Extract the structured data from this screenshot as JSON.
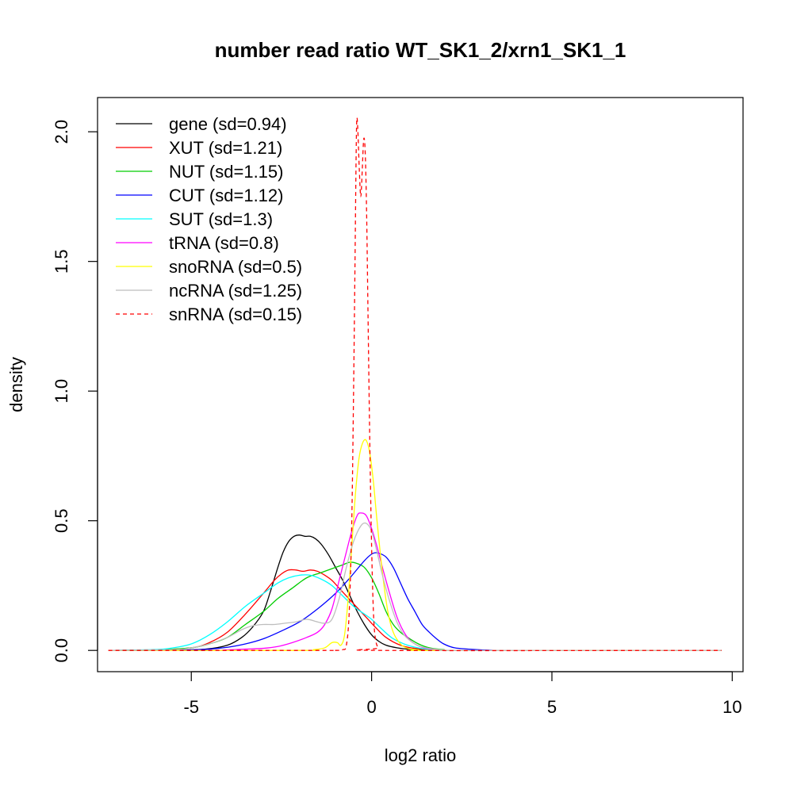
{
  "chart_data": {
    "type": "line",
    "title": "number read ratio WT_SK1_2/xrn1_SK1_1",
    "xlabel": "log2 ratio",
    "ylabel": "density",
    "xlim": [
      -7.6,
      10.3
    ],
    "ylim": [
      -0.082,
      2.132
    ],
    "xticks": [
      -5,
      0,
      5,
      10
    ],
    "xtick_labels": [
      "-5",
      "0",
      "5",
      "10"
    ],
    "yticks": [
      0.0,
      0.5,
      1.0,
      1.5,
      2.0
    ],
    "ytick_labels": [
      "0.0",
      "0.5",
      "1.0",
      "1.5",
      "2.0"
    ],
    "legend_position": "top-left",
    "grid": false,
    "series": [
      {
        "name": "gene (sd=0.94)",
        "color": "#000000",
        "dashed": false,
        "points": [
          [
            -7.3,
            0
          ],
          [
            -5.5,
            0.001
          ],
          [
            -4.6,
            0.005
          ],
          [
            -4.0,
            0.02
          ],
          [
            -3.6,
            0.05
          ],
          [
            -3.3,
            0.09
          ],
          [
            -3.0,
            0.15
          ],
          [
            -2.8,
            0.23
          ],
          [
            -2.6,
            0.32
          ],
          [
            -2.45,
            0.38
          ],
          [
            -2.3,
            0.42
          ],
          [
            -2.15,
            0.44
          ],
          [
            -2.0,
            0.445
          ],
          [
            -1.85,
            0.44
          ],
          [
            -1.7,
            0.44
          ],
          [
            -1.55,
            0.43
          ],
          [
            -1.4,
            0.41
          ],
          [
            -1.2,
            0.37
          ],
          [
            -1.0,
            0.32
          ],
          [
            -0.8,
            0.27
          ],
          [
            -0.6,
            0.21
          ],
          [
            -0.4,
            0.15
          ],
          [
            -0.2,
            0.1
          ],
          [
            0,
            0.06
          ],
          [
            0.2,
            0.035
          ],
          [
            0.4,
            0.02
          ],
          [
            0.7,
            0.01
          ],
          [
            1.0,
            0.005
          ],
          [
            1.5,
            0.002
          ],
          [
            2.5,
            0
          ],
          [
            9.7,
            0
          ]
        ]
      },
      {
        "name": "XUT (sd=1.21)",
        "color": "#ff0000",
        "dashed": false,
        "points": [
          [
            -7.3,
            0
          ],
          [
            -6.0,
            0.002
          ],
          [
            -5.0,
            0.01
          ],
          [
            -4.5,
            0.03
          ],
          [
            -4.0,
            0.07
          ],
          [
            -3.5,
            0.14
          ],
          [
            -3.0,
            0.22
          ],
          [
            -2.7,
            0.27
          ],
          [
            -2.5,
            0.295
          ],
          [
            -2.3,
            0.31
          ],
          [
            -2.1,
            0.31
          ],
          [
            -1.9,
            0.305
          ],
          [
            -1.7,
            0.31
          ],
          [
            -1.5,
            0.305
          ],
          [
            -1.3,
            0.29
          ],
          [
            -1.1,
            0.27
          ],
          [
            -0.9,
            0.24
          ],
          [
            -0.7,
            0.21
          ],
          [
            -0.5,
            0.18
          ],
          [
            -0.3,
            0.15
          ],
          [
            -0.1,
            0.12
          ],
          [
            0.1,
            0.09
          ],
          [
            0.4,
            0.05
          ],
          [
            0.8,
            0.02
          ],
          [
            1.2,
            0.008
          ],
          [
            1.8,
            0.002
          ],
          [
            2.5,
            0
          ],
          [
            9.7,
            0
          ]
        ]
      },
      {
        "name": "NUT (sd=1.15)",
        "color": "#00cd00",
        "dashed": false,
        "points": [
          [
            -7.3,
            0
          ],
          [
            -6.0,
            0.002
          ],
          [
            -5.0,
            0.01
          ],
          [
            -4.5,
            0.025
          ],
          [
            -4.0,
            0.05
          ],
          [
            -3.5,
            0.1
          ],
          [
            -3.0,
            0.15
          ],
          [
            -2.6,
            0.2
          ],
          [
            -2.2,
            0.24
          ],
          [
            -1.8,
            0.28
          ],
          [
            -1.4,
            0.3
          ],
          [
            -1.0,
            0.32
          ],
          [
            -0.8,
            0.33
          ],
          [
            -0.6,
            0.34
          ],
          [
            -0.4,
            0.335
          ],
          [
            -0.2,
            0.32
          ],
          [
            0,
            0.28
          ],
          [
            0.2,
            0.22
          ],
          [
            0.4,
            0.15
          ],
          [
            0.6,
            0.1
          ],
          [
            0.8,
            0.07
          ],
          [
            1.0,
            0.05
          ],
          [
            1.3,
            0.025
          ],
          [
            1.6,
            0.01
          ],
          [
            2.0,
            0.003
          ],
          [
            2.5,
            0
          ],
          [
            9.7,
            0
          ]
        ]
      },
      {
        "name": "CUT (sd=1.12)",
        "color": "#0000ff",
        "dashed": false,
        "points": [
          [
            -7.3,
            0
          ],
          [
            -5.5,
            0.001
          ],
          [
            -4.5,
            0.005
          ],
          [
            -4.0,
            0.012
          ],
          [
            -3.5,
            0.025
          ],
          [
            -3.0,
            0.045
          ],
          [
            -2.5,
            0.075
          ],
          [
            -2.0,
            0.11
          ],
          [
            -1.5,
            0.16
          ],
          [
            -1.0,
            0.22
          ],
          [
            -0.6,
            0.28
          ],
          [
            -0.3,
            0.33
          ],
          [
            -0.1,
            0.36
          ],
          [
            0.05,
            0.375
          ],
          [
            0.2,
            0.375
          ],
          [
            0.4,
            0.36
          ],
          [
            0.6,
            0.32
          ],
          [
            0.8,
            0.26
          ],
          [
            1.0,
            0.2
          ],
          [
            1.2,
            0.15
          ],
          [
            1.4,
            0.1
          ],
          [
            1.6,
            0.07
          ],
          [
            1.8,
            0.045
          ],
          [
            2.0,
            0.025
          ],
          [
            2.3,
            0.01
          ],
          [
            2.8,
            0.004
          ],
          [
            3.3,
            0.001
          ],
          [
            4.0,
            0
          ],
          [
            9.7,
            0
          ]
        ]
      },
      {
        "name": "SUT (sd=1.3)",
        "color": "#00ffff",
        "dashed": false,
        "points": [
          [
            -7.3,
            0
          ],
          [
            -6.0,
            0.003
          ],
          [
            -5.5,
            0.01
          ],
          [
            -5.0,
            0.025
          ],
          [
            -4.5,
            0.06
          ],
          [
            -4.0,
            0.11
          ],
          [
            -3.5,
            0.17
          ],
          [
            -3.0,
            0.22
          ],
          [
            -2.6,
            0.26
          ],
          [
            -2.3,
            0.28
          ],
          [
            -2.0,
            0.29
          ],
          [
            -1.7,
            0.29
          ],
          [
            -1.4,
            0.275
          ],
          [
            -1.1,
            0.25
          ],
          [
            -0.8,
            0.21
          ],
          [
            -0.5,
            0.17
          ],
          [
            -0.2,
            0.14
          ],
          [
            0,
            0.12
          ],
          [
            0.3,
            0.08
          ],
          [
            0.6,
            0.045
          ],
          [
            1.0,
            0.02
          ],
          [
            1.4,
            0.007
          ],
          [
            1.8,
            0.002
          ],
          [
            2.5,
            0
          ],
          [
            9.7,
            0
          ]
        ]
      },
      {
        "name": "tRNA (sd=0.8)",
        "color": "#ff00ff",
        "dashed": false,
        "points": [
          [
            -7.3,
            0
          ],
          [
            -4.5,
            0
          ],
          [
            -4.0,
            0.002
          ],
          [
            -3.5,
            0.005
          ],
          [
            -3.0,
            0.008
          ],
          [
            -2.6,
            0.015
          ],
          [
            -2.2,
            0.03
          ],
          [
            -1.8,
            0.05
          ],
          [
            -1.5,
            0.07
          ],
          [
            -1.3,
            0.1
          ],
          [
            -1.1,
            0.16
          ],
          [
            -0.9,
            0.27
          ],
          [
            -0.7,
            0.38
          ],
          [
            -0.55,
            0.46
          ],
          [
            -0.4,
            0.52
          ],
          [
            -0.3,
            0.53
          ],
          [
            -0.15,
            0.52
          ],
          [
            0,
            0.47
          ],
          [
            0.15,
            0.4
          ],
          [
            0.3,
            0.32
          ],
          [
            0.5,
            0.22
          ],
          [
            0.7,
            0.13
          ],
          [
            0.9,
            0.07
          ],
          [
            1.1,
            0.035
          ],
          [
            1.4,
            0.012
          ],
          [
            1.8,
            0.003
          ],
          [
            2.5,
            0
          ],
          [
            9.7,
            0
          ]
        ]
      },
      {
        "name": "snoRNA (sd=0.5)",
        "color": "#ffff00",
        "dashed": false,
        "points": [
          [
            -7.3,
            0
          ],
          [
            -2.0,
            0
          ],
          [
            -1.6,
            0.003
          ],
          [
            -1.3,
            0.01
          ],
          [
            -1.1,
            0.03
          ],
          [
            -0.95,
            0.03
          ],
          [
            -0.85,
            0.02
          ],
          [
            -0.75,
            0.06
          ],
          [
            -0.65,
            0.2
          ],
          [
            -0.55,
            0.4
          ],
          [
            -0.45,
            0.6
          ],
          [
            -0.35,
            0.74
          ],
          [
            -0.25,
            0.8
          ],
          [
            -0.15,
            0.81
          ],
          [
            -0.05,
            0.76
          ],
          [
            0.05,
            0.65
          ],
          [
            0.15,
            0.5
          ],
          [
            0.3,
            0.3
          ],
          [
            0.45,
            0.15
          ],
          [
            0.6,
            0.07
          ],
          [
            0.8,
            0.025
          ],
          [
            1.0,
            0.008
          ],
          [
            1.3,
            0.002
          ],
          [
            1.8,
            0
          ],
          [
            9.7,
            0
          ]
        ]
      },
      {
        "name": "ncRNA (sd=1.25)",
        "color": "#bebebe",
        "dashed": false,
        "points": [
          [
            -7.3,
            0
          ],
          [
            -5.5,
            0.003
          ],
          [
            -5.0,
            0.01
          ],
          [
            -4.5,
            0.025
          ],
          [
            -4.0,
            0.05
          ],
          [
            -3.6,
            0.08
          ],
          [
            -3.3,
            0.095
          ],
          [
            -3.0,
            0.1
          ],
          [
            -2.7,
            0.1
          ],
          [
            -2.4,
            0.105
          ],
          [
            -2.1,
            0.11
          ],
          [
            -1.8,
            0.12
          ],
          [
            -1.5,
            0.11
          ],
          [
            -1.3,
            0.105
          ],
          [
            -1.1,
            0.12
          ],
          [
            -0.9,
            0.2
          ],
          [
            -0.7,
            0.32
          ],
          [
            -0.5,
            0.42
          ],
          [
            -0.3,
            0.48
          ],
          [
            -0.15,
            0.49
          ],
          [
            0,
            0.46
          ],
          [
            0.15,
            0.38
          ],
          [
            0.3,
            0.29
          ],
          [
            0.5,
            0.19
          ],
          [
            0.7,
            0.11
          ],
          [
            0.9,
            0.06
          ],
          [
            1.2,
            0.025
          ],
          [
            1.5,
            0.01
          ],
          [
            2.0,
            0.002
          ],
          [
            2.5,
            0
          ],
          [
            9.7,
            0
          ]
        ]
      },
      {
        "name": "snRNA (sd=0.15)",
        "color": "#ff0000",
        "dashed": true,
        "points": [
          [
            -7.3,
            0
          ],
          [
            -1.7,
            0
          ],
          [
            -1.0,
            0
          ],
          [
            -0.8,
            0.003
          ],
          [
            -0.7,
            0.02
          ],
          [
            -0.62,
            0.15
          ],
          [
            -0.55,
            0.5
          ],
          [
            -0.5,
            1.0
          ],
          [
            -0.46,
            1.5
          ],
          [
            -0.43,
            1.9
          ],
          [
            -0.41,
            2.05
          ],
          [
            -0.38,
            2.0
          ],
          [
            -0.34,
            1.85
          ],
          [
            -0.3,
            1.75
          ],
          [
            -0.26,
            1.85
          ],
          [
            -0.22,
            1.97
          ],
          [
            -0.18,
            1.93
          ],
          [
            -0.14,
            1.7
          ],
          [
            -0.1,
            1.3
          ],
          [
            -0.05,
            0.8
          ],
          [
            0,
            0.4
          ],
          [
            0.05,
            0.15
          ],
          [
            0.1,
            0.05
          ],
          [
            0.18,
            0.01
          ],
          [
            0.3,
            0
          ],
          [
            9.7,
            0
          ]
        ]
      }
    ]
  }
}
